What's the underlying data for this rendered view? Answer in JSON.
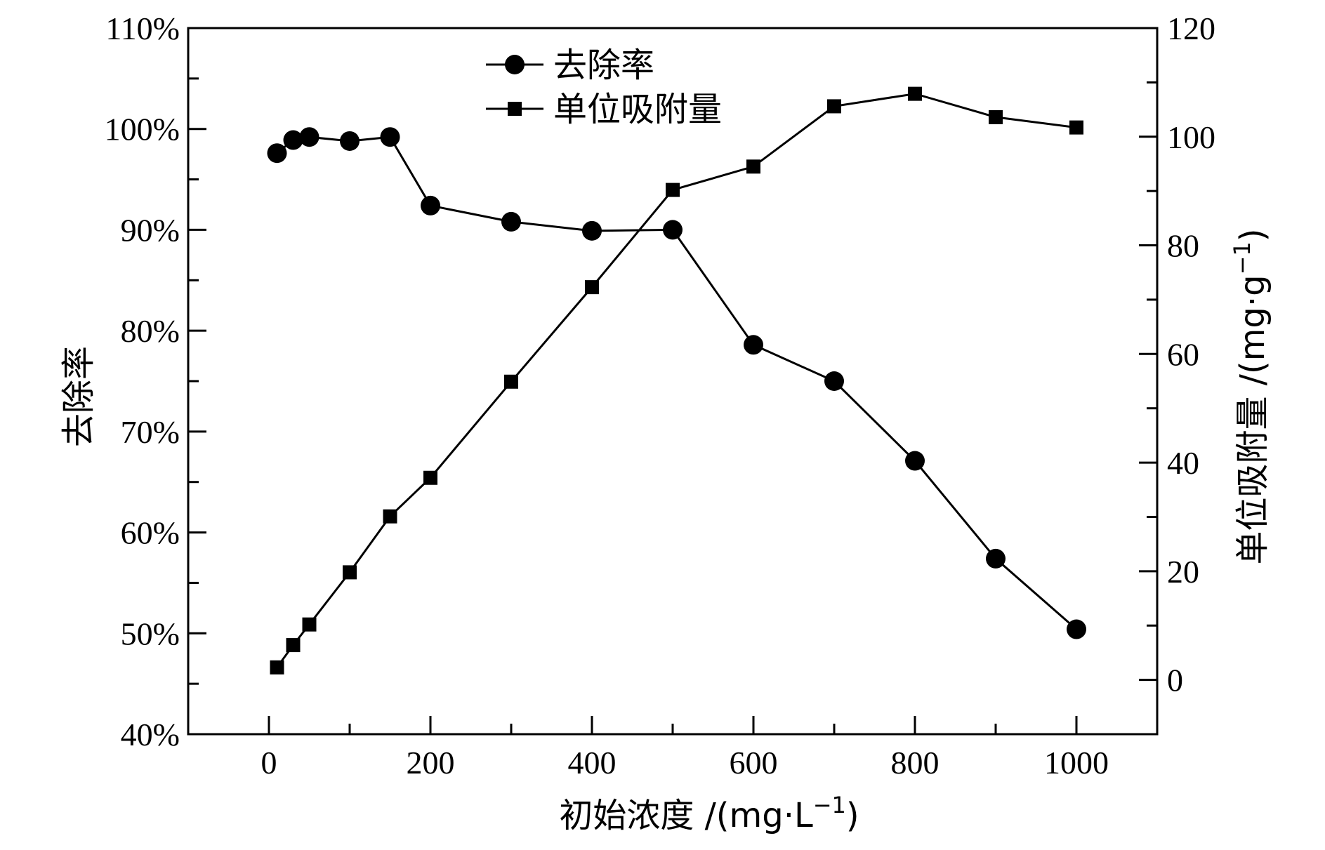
{
  "chart_data": {
    "type": "line",
    "x_label_text": "初始浓度 /(mg·L",
    "x_label_sup": "−1",
    "x_label_close": ")",
    "y_left_label": "去除率",
    "y_right_label_text": "单位吸附量 /(mg·g",
    "y_right_label_sup": "−1",
    "y_right_label_close": ")",
    "xlim": [
      -100,
      1100
    ],
    "ylim_left": [
      40,
      110
    ],
    "ylim_right": [
      -10,
      120
    ],
    "x_ticks": [
      0,
      200,
      400,
      600,
      800,
      1000
    ],
    "y_left_ticks": [
      40,
      50,
      60,
      70,
      80,
      90,
      100,
      110
    ],
    "y_left_tick_labels": [
      "40%",
      "50%",
      "60%",
      "70%",
      "80%",
      "90%",
      "100%",
      "110%"
    ],
    "y_right_ticks": [
      0,
      20,
      40,
      60,
      80,
      100,
      120
    ],
    "legend_position": "top-center",
    "grid": false,
    "series": [
      {
        "name": "去除率",
        "axis": "left",
        "marker": "circle",
        "x": [
          10,
          30,
          50,
          100,
          150,
          200,
          300,
          400,
          500,
          600,
          700,
          800,
          900,
          1000
        ],
        "values": [
          97.6,
          98.9,
          99.2,
          98.8,
          99.2,
          92.4,
          90.8,
          89.9,
          90.0,
          78.6,
          75.0,
          67.1,
          57.4,
          50.4
        ]
      },
      {
        "name": "单位吸附量",
        "axis": "right",
        "marker": "square",
        "x": [
          10,
          30,
          50,
          100,
          150,
          200,
          300,
          400,
          500,
          600,
          700,
          800,
          900,
          1000
        ],
        "values": [
          2.3,
          6.4,
          10.2,
          19.8,
          30.1,
          37.2,
          54.9,
          72.3,
          90.2,
          94.5,
          105.6,
          107.9,
          103.6,
          101.7
        ]
      }
    ]
  }
}
